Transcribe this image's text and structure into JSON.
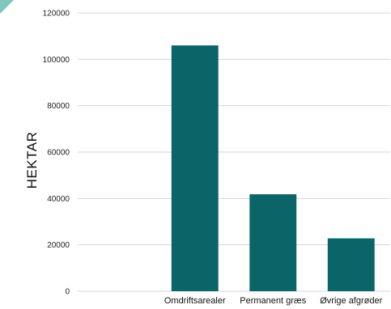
{
  "chart_data": {
    "type": "bar",
    "title": "",
    "xlabel": "",
    "ylabel": "HEKTAR",
    "categories": [
      "",
      "Omdriftsarealer",
      "Permanent græs",
      "Øvrige afgrøder"
    ],
    "values": [
      null,
      106000,
      41800,
      22800
    ],
    "ylim": [
      0,
      120000
    ],
    "yticks": [
      0,
      20000,
      40000,
      60000,
      80000,
      100000,
      120000
    ],
    "ytick_labels": [
      "0",
      "20000",
      "40000",
      "60000",
      "80000",
      "100000",
      "120000"
    ],
    "grid": true,
    "legend": "none",
    "bar_color": "#0b6468",
    "grid_color": "#d4d4d4"
  },
  "decor": {
    "corner_color": "#7fc6bd"
  }
}
